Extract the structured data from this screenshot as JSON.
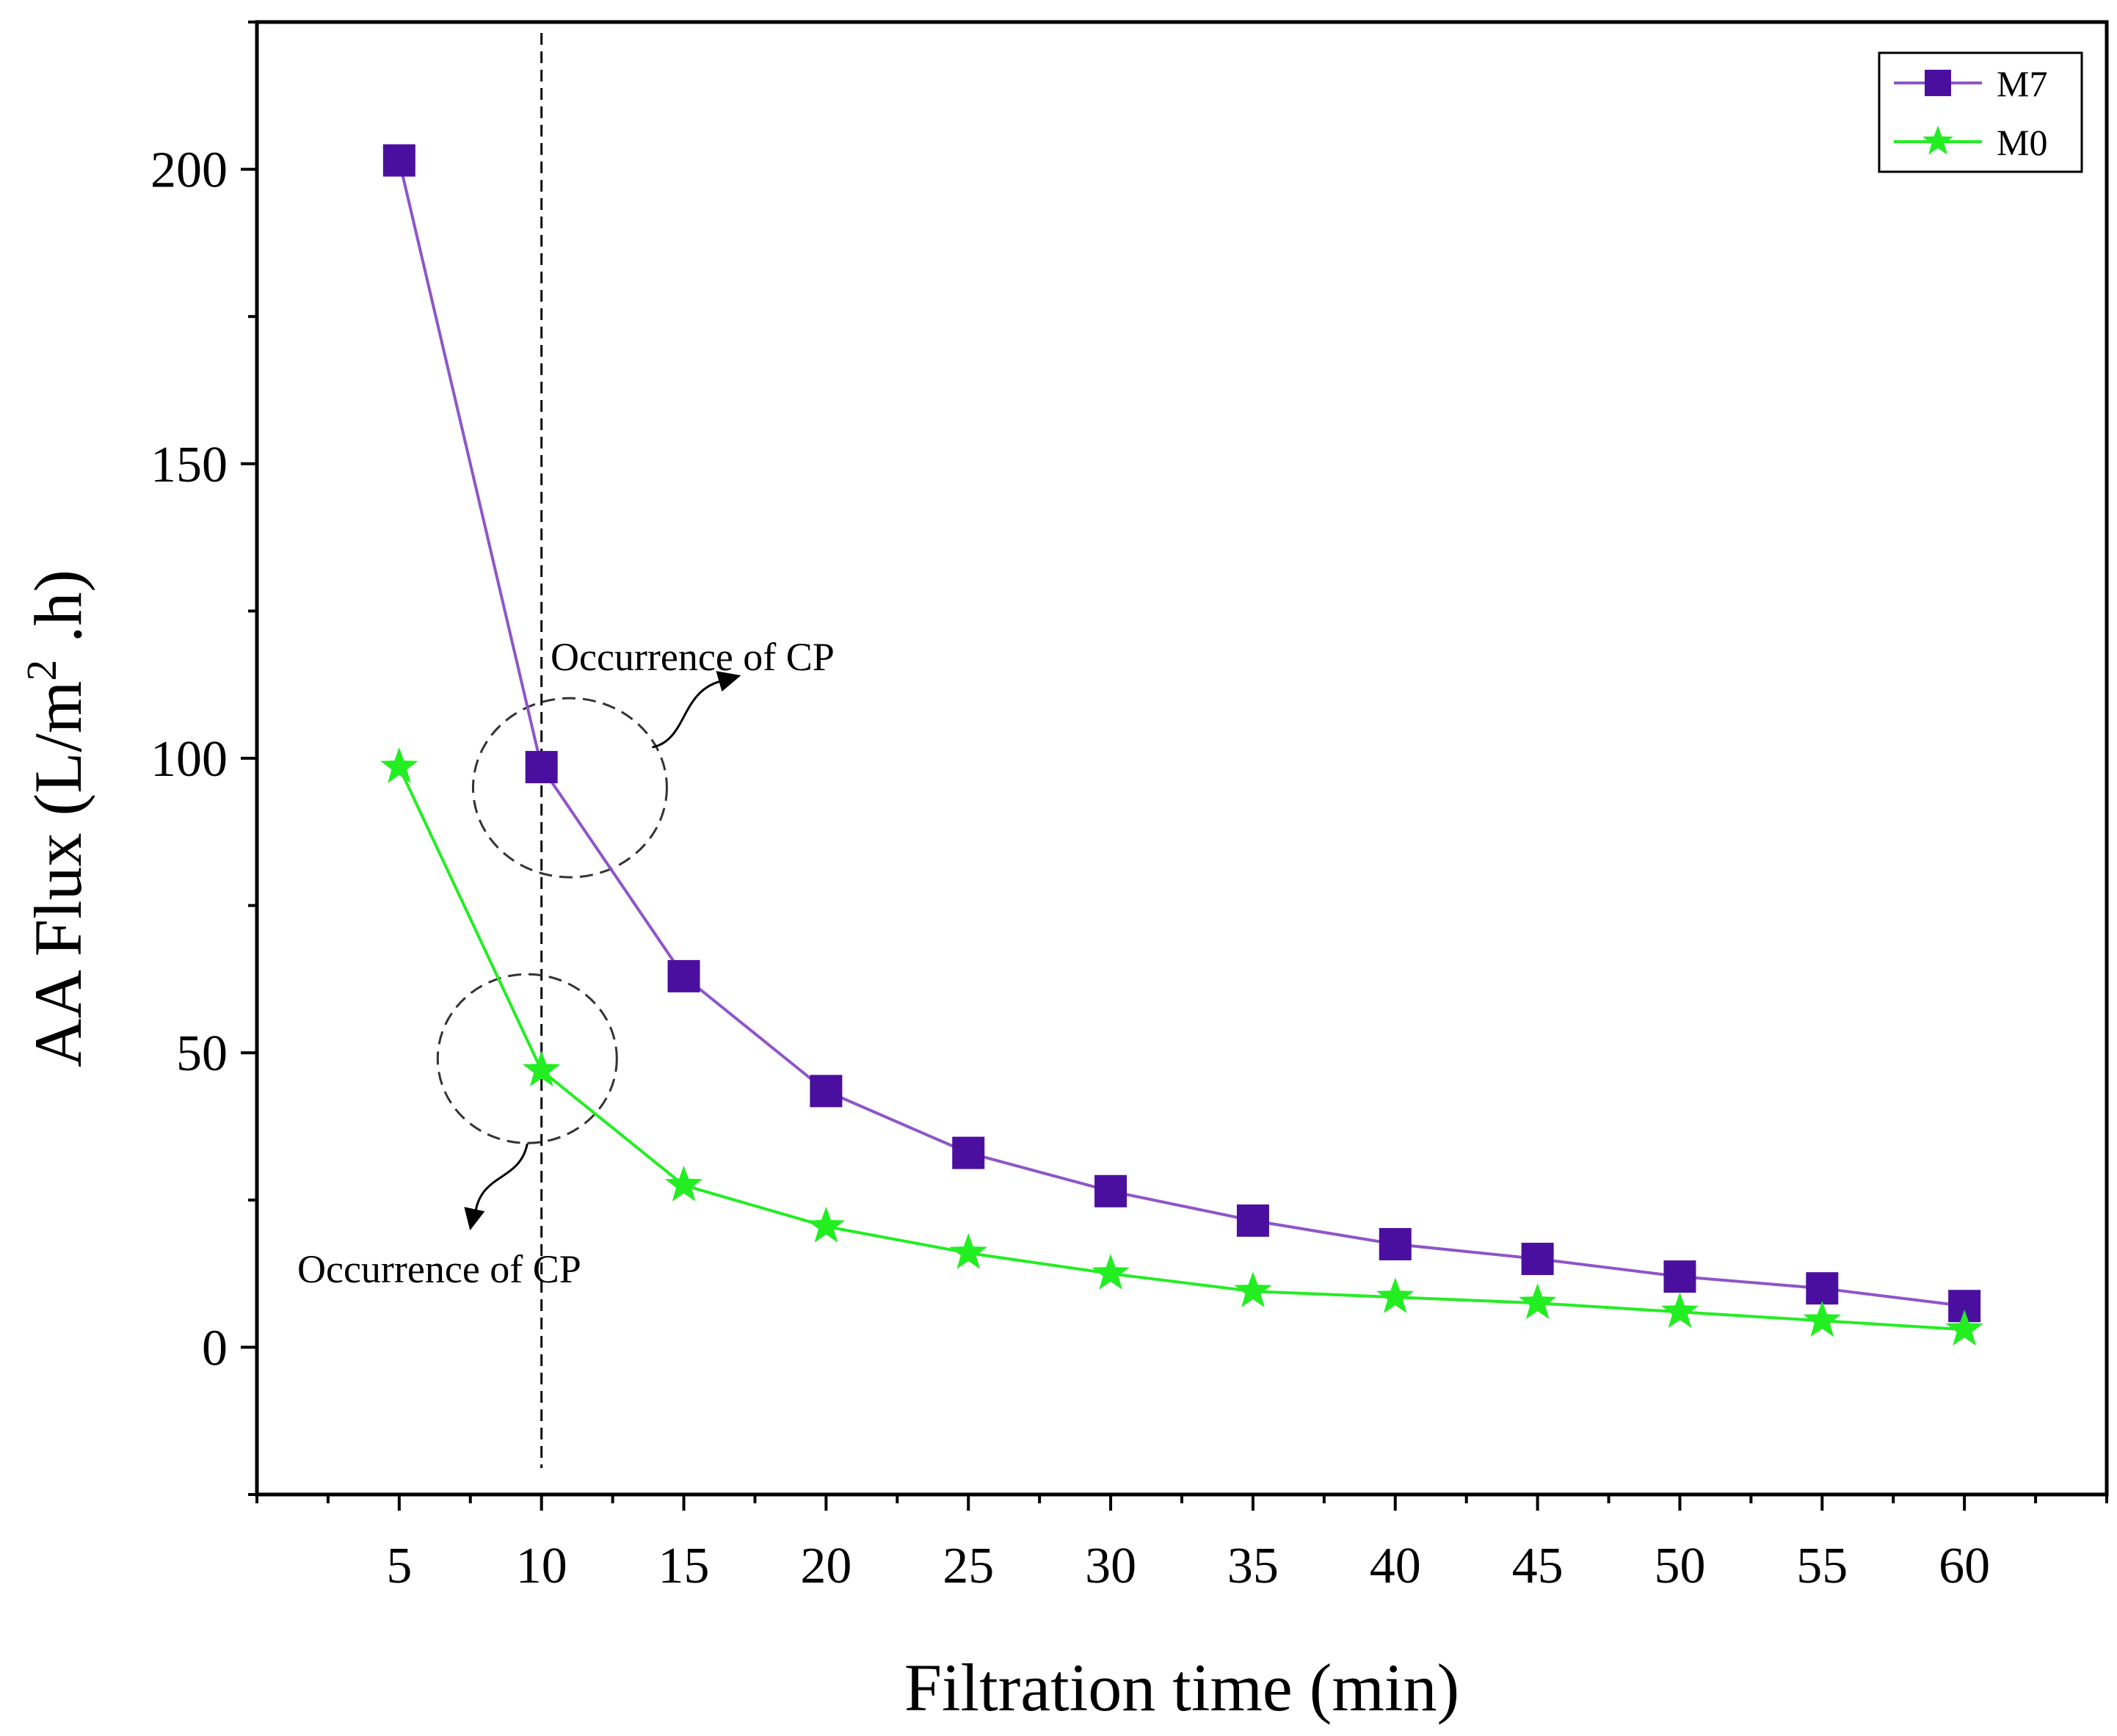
{
  "chart_data": {
    "type": "line",
    "title": "",
    "xlabel": "Filtration time  (min)",
    "ylabel_main": "AA  Flux (L/m",
    "ylabel_sup": "2",
    "ylabel_tail": " .h)",
    "x": [
      5,
      10,
      15,
      20,
      25,
      30,
      35,
      40,
      45,
      50,
      55,
      60
    ],
    "xlim": [
      0,
      65
    ],
    "ylim": [
      -25,
      225
    ],
    "xticks": [
      5,
      10,
      15,
      20,
      25,
      30,
      35,
      40,
      45,
      50,
      55,
      60
    ],
    "xtick_labels": [
      "5",
      "10",
      "15",
      "20",
      "25",
      "30",
      "35",
      "40",
      "45",
      "50",
      "55",
      "60"
    ],
    "yticks": [
      0,
      50,
      100,
      150,
      200
    ],
    "ytick_labels": [
      "0",
      "50",
      "100",
      "150",
      "200"
    ],
    "grid": false,
    "legend_position": "top-right",
    "series": [
      {
        "name": "M7",
        "marker": "square",
        "color": "#4b0fa0",
        "line_color": "#8f55c8",
        "values": [
          201.5,
          98.5,
          63,
          43.5,
          33,
          26.5,
          21.5,
          17.5,
          15,
          12,
          10,
          7
        ]
      },
      {
        "name": "M0",
        "marker": "star",
        "color": "#22ee22",
        "line_color": "#22ee22",
        "values": [
          98.5,
          47,
          27.5,
          20.5,
          16,
          12.5,
          9.5,
          8.5,
          7.5,
          6,
          4.5,
          3
        ]
      }
    ],
    "reference_line": {
      "x": 10,
      "style": "dashed",
      "color": "#000000"
    },
    "annotations": [
      {
        "text": "Occurrence of CP",
        "circle_center": [
          11,
          95
        ]
      },
      {
        "text": "Occurrence of CP",
        "circle_center": [
          9.5,
          49
        ]
      }
    ]
  }
}
